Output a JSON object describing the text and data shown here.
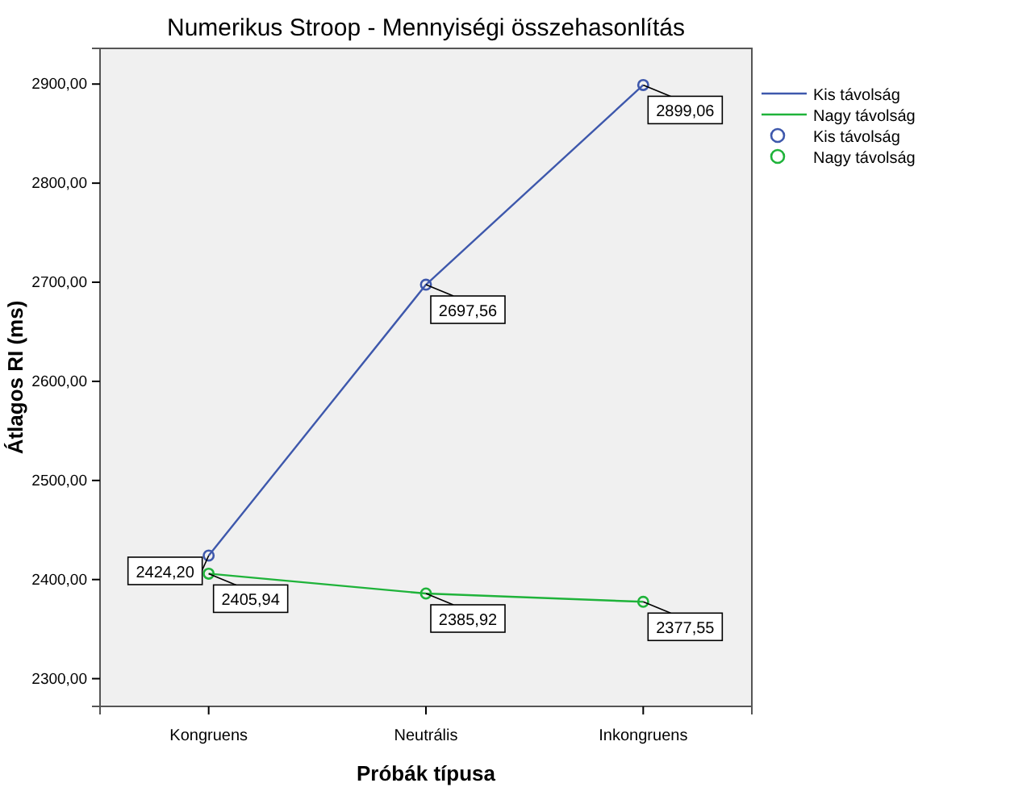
{
  "chart_data": {
    "type": "line",
    "title": "Numerikus Stroop - Mennyiségi összehasonlítás",
    "xlabel": "Próbák típusa",
    "ylabel": "Átlagos RI (ms)",
    "categories": [
      "Kongruens",
      "Neutrális",
      "Inkongruens"
    ],
    "series": [
      {
        "name": "Kis távolság",
        "color": "#3e58ac",
        "values": [
          2424.2,
          2697.56,
          2899.06
        ],
        "value_labels": [
          "2424,20",
          "2697,56",
          "2899,06"
        ]
      },
      {
        "name": "Nagy távolság",
        "color": "#1fb33a",
        "values": [
          2405.94,
          2385.92,
          2377.55
        ],
        "value_labels": [
          "2405,94",
          "2385,92",
          "2377,55"
        ]
      }
    ],
    "ylim": [
      2272,
      2936
    ],
    "yticks": [
      {
        "value": 2300,
        "label": "2300,00"
      },
      {
        "value": 2400,
        "label": "2400,00"
      },
      {
        "value": 2500,
        "label": "2500,00"
      },
      {
        "value": 2600,
        "label": "2600,00"
      },
      {
        "value": 2700,
        "label": "2700,00"
      },
      {
        "value": 2800,
        "label": "2800,00"
      },
      {
        "value": 2900,
        "label": "2900,00"
      }
    ],
    "marker": "circle",
    "legend": "right",
    "grid": false
  }
}
